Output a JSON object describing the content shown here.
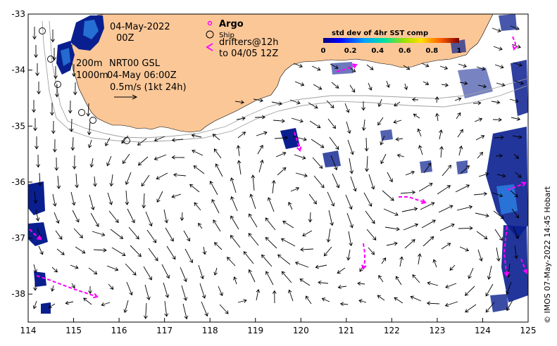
{
  "map": {
    "annotation": {
      "date": "04-May-2022",
      "hour": "00Z",
      "depth_200": "200m",
      "depth_1000": "1000m",
      "product": "NRT00 GSL",
      "product_time": "04-May 06:00Z",
      "speed_scale": "0.5m/s (1kt 24h)"
    },
    "legend": {
      "argo": "Argo",
      "ship": "Ship",
      "drifters_line1": "drifters@12h",
      "drifters_line2": "to 04/05 12Z"
    },
    "colorbar": {
      "title": "std dev of 4hr SST comp",
      "ticks": [
        "0",
        "0.2",
        "0.4",
        "0.6",
        "0.8",
        "1"
      ]
    },
    "credit": "© IMOS 07-May-2022 14:45 Hobart",
    "axes": {
      "x_ticks": [
        "114",
        "115",
        "116",
        "117",
        "118",
        "119",
        "120",
        "121",
        "122",
        "123",
        "124",
        "125"
      ],
      "y_ticks": [
        "-33",
        "-34",
        "-35",
        "-36",
        "-37",
        "-38"
      ],
      "lon_range": [
        114,
        125
      ],
      "lat_range": [
        -38.5,
        -33
      ]
    },
    "colors": {
      "land": "#fbc797",
      "argo": "#ff00ff",
      "drifter": "#ff00ff",
      "sst_patch": "#0a1f8f",
      "isobath": "#a0a0a0"
    }
  }
}
